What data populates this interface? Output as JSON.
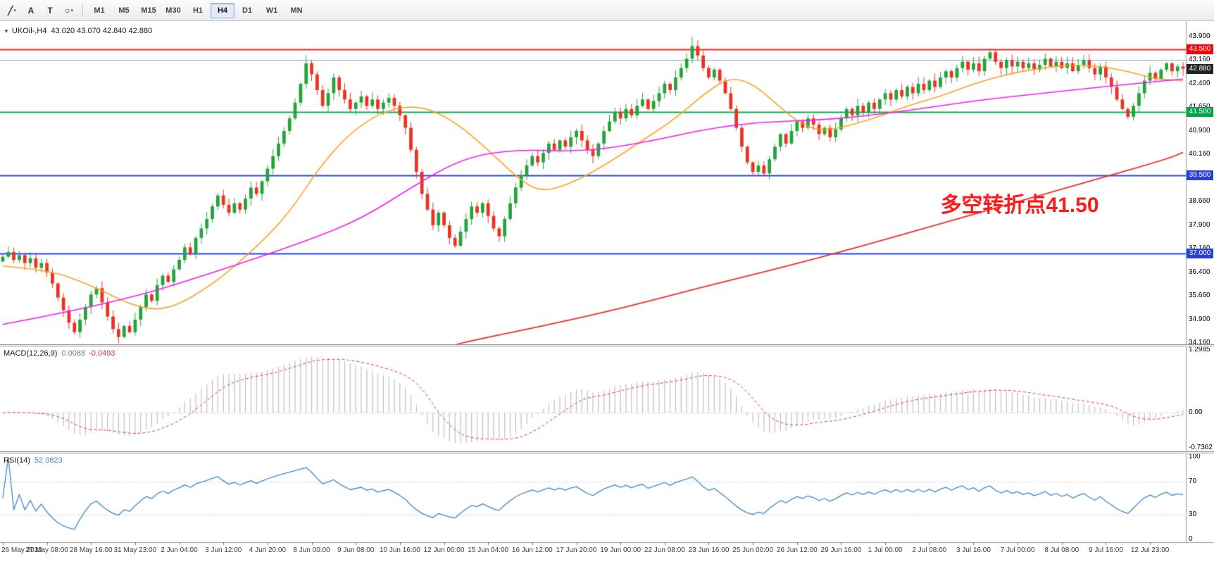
{
  "toolbar": {
    "tools": [
      {
        "id": "line-studies",
        "glyph": "╱",
        "dropdown": true
      },
      {
        "id": "text-tool",
        "glyph": "A",
        "dropdown": false
      },
      {
        "id": "label-tool",
        "glyph": "T",
        "dropdown": false
      },
      {
        "id": "shapes-tool",
        "glyph": "○",
        "dropdown": true
      }
    ],
    "timeframes": [
      {
        "label": "M1",
        "active": false
      },
      {
        "label": "M5",
        "active": false
      },
      {
        "label": "M15",
        "active": false
      },
      {
        "label": "M30",
        "active": false
      },
      {
        "label": "H1",
        "active": false
      },
      {
        "label": "H4",
        "active": true
      },
      {
        "label": "D1",
        "active": false
      },
      {
        "label": "W1",
        "active": false
      },
      {
        "label": "MN",
        "active": false
      }
    ]
  },
  "chart_data": {
    "type": "candlestick",
    "symbol_line": "UKOil-,H4",
    "quote_ohlc": "43.020 43.070 42.840 42.880",
    "up_color": "#25a33c",
    "down_color": "#ea3323",
    "y_ticks": [
      43.9,
      43.16,
      42.4,
      41.65,
      40.9,
      40.16,
      39.4,
      38.66,
      37.9,
      37.16,
      36.4,
      35.66,
      34.9,
      34.16
    ],
    "x_labels": [
      "26 May 2020",
      "27 May 08:00",
      "28 May 16:00",
      "31 May 23:00",
      "2 Jun 04:00",
      "3 Jun 12:00",
      "4 Jun 20:00",
      "8 Jun 00:00",
      "9 Jun 08:00",
      "10 Jun 16:00",
      "12 Jun 00:00",
      "15 Jun 04:00",
      "16 Jun 12:00",
      "17 Jun 20:00",
      "19 Jun 00:00",
      "22 Jun 08:00",
      "23 Jun 16:00",
      "25 Jun 00:00",
      "26 Jun 12:00",
      "29 Jun 16:00",
      "1 Jul 00:00",
      "2 Jul 08:00",
      "3 Jul 16:00",
      "7 Jul 00:00",
      "8 Jul 08:00",
      "9 Jul 16:00",
      "12 Jul 23:00"
    ],
    "candles_per_label": 8,
    "open_seed": 36.75,
    "closes": [
      36.9,
      37.05,
      36.8,
      36.95,
      36.7,
      36.85,
      36.55,
      36.7,
      36.4,
      36.05,
      35.6,
      35.2,
      34.8,
      34.5,
      34.9,
      35.3,
      35.7,
      35.9,
      35.45,
      35.0,
      34.6,
      34.35,
      34.7,
      34.5,
      34.9,
      35.3,
      35.7,
      35.5,
      36.0,
      36.3,
      36.1,
      36.5,
      36.8,
      37.2,
      37.0,
      37.5,
      37.8,
      38.1,
      38.5,
      38.85,
      38.55,
      38.3,
      38.6,
      38.4,
      38.75,
      39.1,
      38.9,
      39.3,
      39.7,
      40.1,
      40.5,
      40.9,
      41.3,
      41.8,
      42.4,
      43.05,
      42.7,
      42.2,
      41.7,
      42.1,
      42.6,
      42.2,
      41.9,
      41.6,
      41.8,
      42.0,
      41.7,
      41.9,
      41.6,
      41.8,
      41.95,
      41.7,
      41.4,
      41.0,
      40.3,
      39.6,
      38.9,
      38.4,
      37.9,
      38.3,
      37.9,
      37.5,
      37.25,
      37.7,
      38.1,
      38.5,
      38.3,
      38.6,
      38.2,
      37.8,
      37.55,
      38.1,
      38.6,
      39.1,
      39.5,
      39.8,
      40.1,
      39.9,
      40.2,
      40.5,
      40.3,
      40.6,
      40.4,
      40.7,
      40.9,
      40.6,
      40.3,
      40.1,
      40.5,
      40.9,
      41.2,
      41.5,
      41.3,
      41.6,
      41.4,
      41.7,
      41.9,
      41.6,
      41.85,
      42.1,
      42.4,
      42.2,
      42.6,
      42.9,
      43.2,
      43.6,
      43.3,
      42.9,
      42.6,
      42.85,
      42.5,
      42.1,
      41.6,
      41.0,
      40.4,
      39.9,
      39.6,
      39.8,
      39.55,
      40.0,
      40.4,
      40.8,
      40.5,
      40.9,
      41.2,
      41.0,
      41.3,
      41.1,
      40.8,
      41.0,
      40.7,
      40.95,
      41.3,
      41.6,
      41.4,
      41.7,
      41.5,
      41.8,
      41.6,
      41.9,
      42.1,
      41.9,
      42.2,
      42.0,
      42.3,
      42.1,
      42.4,
      42.2,
      42.5,
      42.3,
      42.6,
      42.8,
      42.6,
      42.9,
      43.1,
      42.85,
      43.05,
      42.8,
      43.2,
      43.4,
      43.1,
      42.9,
      43.15,
      42.95,
      43.1,
      42.9,
      43.05,
      42.85,
      43.0,
      43.2,
      42.95,
      43.1,
      42.9,
      43.05,
      42.8,
      43.0,
      43.15,
      42.9,
      42.7,
      42.95,
      42.6,
      42.3,
      41.9,
      41.6,
      41.35,
      41.7,
      42.1,
      42.5,
      42.75,
      42.55,
      42.85,
      43.05,
      42.8,
      42.95,
      42.88
    ],
    "wick_overrides_up": {
      "55": 0.27,
      "125": 0.3
    },
    "wick_overrides_dn": {
      "21": 0.2
    },
    "hlines": [
      {
        "price": 43.5,
        "color": "#ff2121",
        "width": 2,
        "label": "43.500",
        "badge_color": "#ff0000"
      },
      {
        "price": 43.16,
        "color": "#8aa6c8",
        "width": 1,
        "label": null,
        "badge_color": null
      },
      {
        "price": 41.5,
        "color": "#00b050",
        "width": 2,
        "label": "41.500",
        "badge_color": "#00a44a"
      },
      {
        "price": 39.5,
        "color": "#2a46e8",
        "width": 2,
        "label": "39.500",
        "badge_color": "#2440e0"
      },
      {
        "price": 37.0,
        "color": "#2a46e8",
        "width": 2,
        "label": "37.000",
        "badge_color": "#2440e0"
      }
    ],
    "current_price": {
      "value": 42.88,
      "label": "42.880",
      "badge_color": "#232323"
    },
    "ma_lines": [
      {
        "name": "ma-fast-orange",
        "color": "#ffa21f",
        "width": 1.6,
        "anchors": [
          [
            0,
            36.6
          ],
          [
            8,
            36.5
          ],
          [
            16,
            36.0
          ],
          [
            24,
            35.3
          ],
          [
            30,
            35.2
          ],
          [
            38,
            36.0
          ],
          [
            46,
            37.2
          ],
          [
            52,
            38.3
          ],
          [
            58,
            39.9
          ],
          [
            64,
            41.0
          ],
          [
            70,
            41.6
          ],
          [
            76,
            41.7
          ],
          [
            82,
            41.2
          ],
          [
            88,
            40.3
          ],
          [
            94,
            39.3
          ],
          [
            98,
            38.95
          ],
          [
            104,
            39.3
          ],
          [
            110,
            39.9
          ],
          [
            116,
            40.6
          ],
          [
            122,
            41.3
          ],
          [
            128,
            42.2
          ],
          [
            132,
            42.6
          ],
          [
            136,
            42.4
          ],
          [
            140,
            41.8
          ],
          [
            144,
            41.2
          ],
          [
            148,
            40.9
          ],
          [
            152,
            41.0
          ],
          [
            158,
            41.3
          ],
          [
            164,
            41.7
          ],
          [
            170,
            42.0
          ],
          [
            176,
            42.4
          ],
          [
            182,
            42.7
          ],
          [
            188,
            42.9
          ],
          [
            194,
            43.0
          ],
          [
            199,
            42.95
          ],
          [
            204,
            42.8
          ],
          [
            209,
            42.55
          ],
          [
            214,
            42.5
          ]
        ]
      },
      {
        "name": "ma-mid-magenta",
        "color": "#f31df3",
        "width": 1.6,
        "anchors": [
          [
            0,
            34.75
          ],
          [
            20,
            35.4
          ],
          [
            40,
            36.5
          ],
          [
            55,
            37.4
          ],
          [
            65,
            38.1
          ],
          [
            75,
            39.2
          ],
          [
            82,
            39.9
          ],
          [
            88,
            40.2
          ],
          [
            95,
            40.3
          ],
          [
            103,
            40.25
          ],
          [
            110,
            40.35
          ],
          [
            118,
            40.6
          ],
          [
            126,
            40.9
          ],
          [
            133,
            41.1
          ],
          [
            140,
            41.2
          ],
          [
            148,
            41.25
          ],
          [
            155,
            41.35
          ],
          [
            162,
            41.5
          ],
          [
            170,
            41.7
          ],
          [
            178,
            41.9
          ],
          [
            186,
            42.05
          ],
          [
            194,
            42.2
          ],
          [
            202,
            42.35
          ],
          [
            208,
            42.45
          ],
          [
            214,
            42.55
          ]
        ]
      },
      {
        "name": "ma-slow-red",
        "color": "#ee2e2e",
        "width": 1.8,
        "anchors": [
          [
            82,
            34.1
          ],
          [
            84,
            34.2
          ],
          [
            98,
            34.7
          ],
          [
            112,
            35.25
          ],
          [
            126,
            35.9
          ],
          [
            141,
            36.55
          ],
          [
            155,
            37.2
          ],
          [
            169,
            37.9
          ],
          [
            183,
            38.6
          ],
          [
            197,
            39.3
          ],
          [
            211,
            40.0
          ],
          [
            214,
            40.22
          ]
        ]
      }
    ],
    "annotation": {
      "text": "多空转折点41.50",
      "color": "#fe1a1a",
      "x_index": 170,
      "price": 38.72,
      "font_px": 30
    },
    "macd": {
      "label": "MACD(12,26,9)",
      "value_main": "0.0088",
      "value_signal": "-0.0493",
      "fast": 12,
      "slow": 26,
      "signal": 9,
      "ticks": [
        {
          "v": 1.2985,
          "label": "1.2985"
        },
        {
          "v": 0,
          "label": "0.00"
        },
        {
          "v": -0.7362,
          "label": "-0.7362"
        }
      ],
      "hist_color": "#bfbfbf",
      "signal_color": "#e03a3a"
    },
    "rsi": {
      "label": "RSI(14)",
      "value": "52.0823",
      "period": 14,
      "ticks": [
        {
          "v": 100,
          "label": "100"
        },
        {
          "v": 70,
          "label": "70"
        },
        {
          "v": 30,
          "label": "30"
        },
        {
          "v": 0,
          "label": "0"
        }
      ],
      "levels": [
        70,
        30
      ],
      "color": "#3f86c6"
    }
  }
}
